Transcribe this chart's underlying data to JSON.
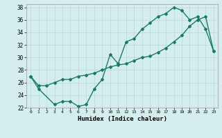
{
  "series1_x": [
    0,
    1,
    3,
    4,
    5,
    6,
    7,
    8,
    9,
    10,
    11,
    12,
    13,
    14,
    15,
    16,
    17,
    18,
    19,
    20,
    21,
    22,
    23
  ],
  "series1_y": [
    27,
    25,
    22.5,
    23,
    23,
    22.2,
    22.5,
    25,
    26.5,
    30.5,
    29,
    32.5,
    33,
    34.5,
    35.5,
    36.5,
    37,
    38,
    37.5,
    36,
    36.5,
    34.5,
    31.0
  ],
  "series2_x": [
    0,
    1,
    2,
    3,
    4,
    5,
    6,
    7,
    8,
    9,
    10,
    11,
    12,
    13,
    14,
    15,
    16,
    17,
    18,
    19,
    20,
    21,
    22,
    23
  ],
  "series2_y": [
    27,
    25.5,
    25.5,
    26,
    26.5,
    26.5,
    27,
    27.2,
    27.5,
    28,
    28.5,
    28.8,
    29,
    29.5,
    30,
    30.2,
    30.8,
    31.5,
    32.5,
    33.5,
    35,
    36,
    36.5,
    31.0
  ],
  "line_color": "#1a7a6a",
  "bg_color": "#d4eeee",
  "grid_color": "#b8d8d8",
  "xlabel": "Humidex (Indice chaleur)",
  "xlim": [
    -0.5,
    23.5
  ],
  "ylim": [
    22,
    38.5
  ],
  "yticks": [
    22,
    24,
    26,
    28,
    30,
    32,
    34,
    36,
    38
  ],
  "xticks": [
    0,
    1,
    2,
    3,
    4,
    5,
    6,
    7,
    8,
    9,
    10,
    11,
    12,
    13,
    14,
    15,
    16,
    17,
    18,
    19,
    20,
    21,
    22,
    23
  ],
  "marker": "D",
  "marker_size": 2.0,
  "line_width": 1.0
}
